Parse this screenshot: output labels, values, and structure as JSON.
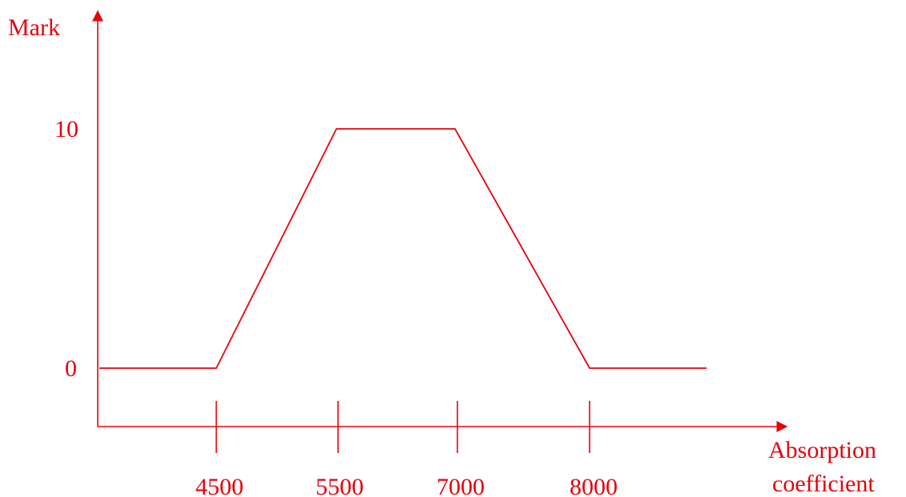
{
  "chart_data": {
    "type": "line",
    "title": "",
    "xlabel_lines": [
      "Absorption",
      "coefficient"
    ],
    "ylabel": "Mark",
    "x_ticks": [
      "4500",
      "5500",
      "7000",
      "8000"
    ],
    "y_ticks": [
      "0",
      "10"
    ],
    "series": [
      {
        "points": [
          {
            "x": "start",
            "y": 0
          },
          {
            "x": "4500",
            "y": 0
          },
          {
            "x": "5500",
            "y": 10
          },
          {
            "x": "7000",
            "y": 10
          },
          {
            "x": "8000",
            "y": 0
          },
          {
            "x": "end",
            "y": 0
          }
        ]
      }
    ],
    "ylim": [
      0,
      10
    ],
    "grid": false,
    "legend": "none",
    "color": "#e8000b"
  }
}
